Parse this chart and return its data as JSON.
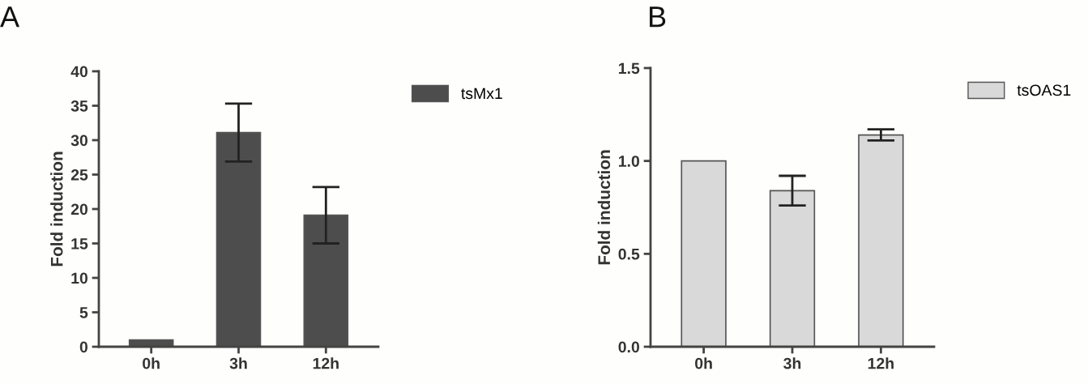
{
  "chart_data": [
    {
      "type": "bar",
      "title": "A",
      "ylabel": "Fold induction",
      "categories": [
        "0h",
        "3h",
        "12h"
      ],
      "series": [
        {
          "name": "tsMx1",
          "color": "#4d4d4d",
          "values": [
            1.0,
            31.1,
            19.1
          ],
          "errors": [
            null,
            [
              26.9,
              35.3
            ],
            [
              15.0,
              23.2
            ]
          ]
        }
      ],
      "ylim": [
        0,
        40
      ],
      "yticks": [
        0,
        5,
        10,
        15,
        20,
        25,
        30,
        35,
        40
      ],
      "grid": false,
      "legend": "right"
    },
    {
      "type": "bar",
      "title": "B",
      "ylabel": "Fold induction",
      "categories": [
        "0h",
        "3h",
        "12h"
      ],
      "series": [
        {
          "name": "tsOAS1",
          "color": "#d9d9d9",
          "values": [
            1.0,
            0.84,
            1.14
          ],
          "errors": [
            null,
            [
              0.76,
              0.92
            ],
            [
              1.11,
              1.17
            ]
          ]
        }
      ],
      "ylim": [
        0,
        1.5
      ],
      "yticks": [
        {
          "value": 0,
          "label": "0.0"
        },
        {
          "value": 0.5,
          "label": "0.5"
        },
        {
          "value": 1.0,
          "label": "1.0"
        },
        {
          "value": 1.5,
          "label": "1.5"
        }
      ],
      "grid": false,
      "legend": "right"
    }
  ]
}
